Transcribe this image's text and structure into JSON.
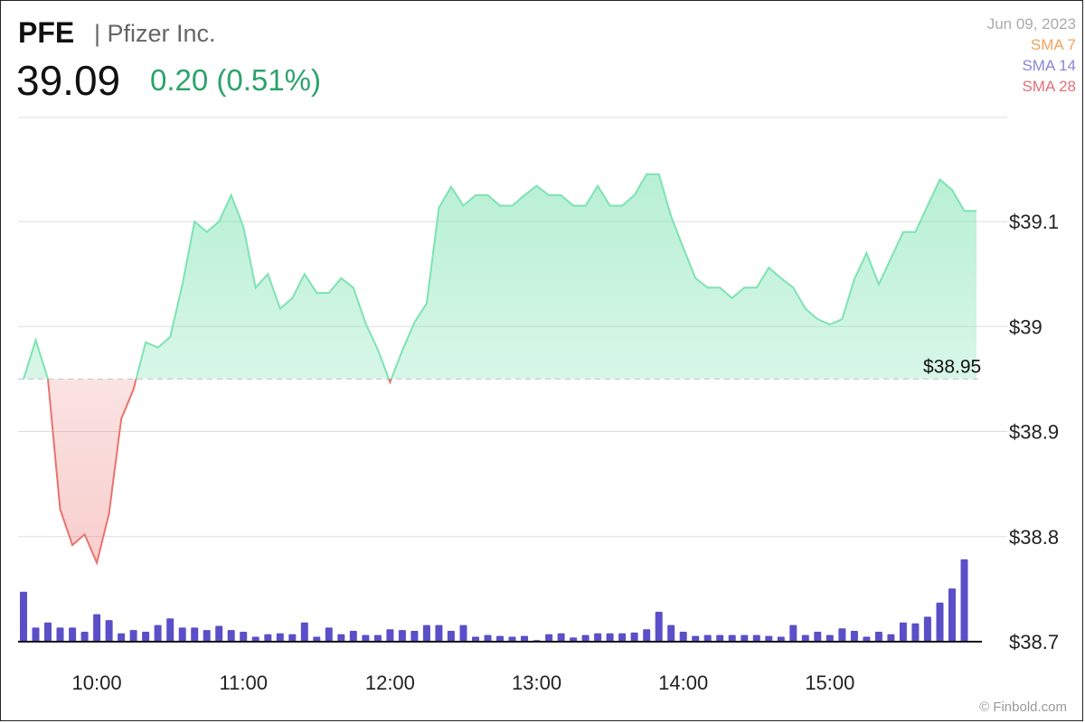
{
  "header": {
    "ticker": "PFE",
    "company": "| Pfizer Inc.",
    "price": "39.09",
    "change": "0.20 (0.51%)",
    "date": "Jun 09, 2023",
    "sma_labels": [
      {
        "label": "SMA 7",
        "color": "#f0a35e"
      },
      {
        "label": "SMA 14",
        "color": "#8a86d6"
      },
      {
        "label": "SMA 28",
        "color": "#e0707a"
      }
    ],
    "credit": "© Finbold.com"
  },
  "colors": {
    "up": "#7de3b2",
    "down": "#e8736f",
    "volume": "#5a4fc8"
  },
  "chart_data": {
    "type": "line",
    "title": "",
    "xlabel": "",
    "ylabel": "",
    "reference_price": 38.95,
    "reference_label": "$38.95",
    "ylim": [
      38.7,
      39.2
    ],
    "y_ticks": [
      38.7,
      38.8,
      38.9,
      39,
      39.1
    ],
    "y_tick_labels": [
      "$38.7",
      "$38.8",
      "$38.9",
      "$39",
      "$39.1"
    ],
    "x_ticks": [
      "10:00",
      "11:00",
      "12:00",
      "13:00",
      "14:00",
      "15:00"
    ],
    "x_tick_times": [
      600,
      660,
      720,
      780,
      840,
      900
    ],
    "grid": true,
    "series": [
      {
        "times": [
          570,
          575,
          580,
          585,
          590,
          595,
          600,
          605,
          610,
          615,
          620,
          625,
          630,
          635,
          640,
          645,
          650,
          655,
          660,
          665,
          670,
          675,
          680,
          685,
          690,
          695,
          700,
          705,
          710,
          715,
          720,
          725,
          730,
          735,
          740,
          745,
          750,
          755,
          760,
          765,
          770,
          775,
          780,
          785,
          790,
          795,
          800,
          805,
          810,
          815,
          820,
          825,
          830,
          835,
          840,
          845,
          850,
          855,
          860,
          865,
          870,
          875,
          880,
          885,
          890,
          895,
          900,
          905,
          910,
          915,
          920,
          925,
          930,
          935,
          940,
          945,
          950,
          955,
          960
        ],
        "values": [
          38.95,
          38.987,
          38.95,
          38.826,
          38.792,
          38.802,
          38.775,
          38.822,
          38.912,
          38.94,
          38.985,
          38.98,
          38.99,
          39.04,
          39.1,
          39.09,
          39.1,
          39.125,
          39.095,
          39.037,
          39.05,
          39.017,
          39.027,
          39.05,
          39.032,
          39.032,
          39.046,
          39.037,
          39.003,
          38.978,
          38.947,
          38.977,
          39.004,
          39.022,
          39.113,
          39.133,
          39.115,
          39.125,
          39.125,
          39.115,
          39.115,
          39.125,
          39.134,
          39.125,
          39.125,
          39.115,
          39.115,
          39.134,
          39.115,
          39.115,
          39.125,
          39.145,
          39.145,
          39.105,
          39.075,
          39.046,
          39.037,
          39.037,
          39.027,
          39.037,
          39.037,
          39.056,
          39.046,
          39.037,
          39.017,
          39.007,
          39.002,
          39.007,
          39.045,
          39.07,
          39.04,
          39.065,
          39.09,
          39.09,
          39.115,
          39.14,
          39.13,
          39.11,
          39.11
        ]
      }
    ],
    "volume": [
      0.6,
      0.17,
      0.23,
      0.17,
      0.17,
      0.12,
      0.33,
      0.26,
      0.1,
      0.14,
      0.12,
      0.2,
      0.28,
      0.17,
      0.17,
      0.14,
      0.19,
      0.14,
      0.12,
      0.06,
      0.09,
      0.1,
      0.09,
      0.23,
      0.06,
      0.17,
      0.09,
      0.13,
      0.08,
      0.08,
      0.15,
      0.14,
      0.13,
      0.2,
      0.2,
      0.13,
      0.2,
      0.06,
      0.08,
      0.07,
      0.06,
      0.07,
      0.02,
      0.09,
      0.1,
      0.05,
      0.08,
      0.1,
      0.1,
      0.1,
      0.11,
      0.15,
      0.36,
      0.2,
      0.12,
      0.07,
      0.08,
      0.08,
      0.08,
      0.08,
      0.08,
      0.07,
      0.06,
      0.2,
      0.08,
      0.12,
      0.08,
      0.16,
      0.13,
      0.06,
      0.12,
      0.09,
      0.23,
      0.22,
      0.3,
      0.47,
      0.64,
      0.99,
      0.0
    ]
  }
}
